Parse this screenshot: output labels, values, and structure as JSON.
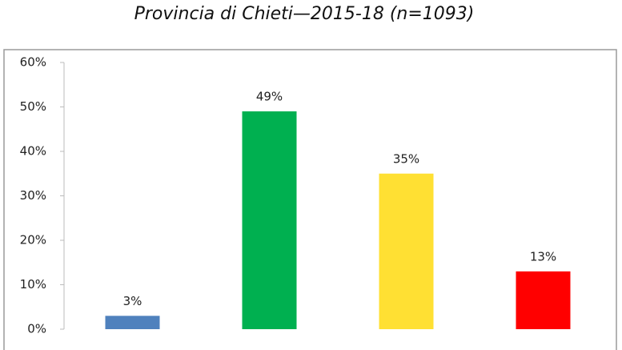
{
  "chart_data": {
    "type": "bar",
    "title": "Provincia di Chieti—2015-18 (n=1093)",
    "categories": [
      null,
      null,
      null,
      null
    ],
    "values": [
      3,
      49,
      35,
      13
    ],
    "value_labels": [
      "3%",
      "49%",
      "35%",
      "13%"
    ],
    "colors": [
      "#4f81bd",
      "#00b050",
      "#ffe033",
      "#ff0000"
    ],
    "ylim": [
      0,
      60
    ],
    "yticks": [
      {
        "value": 0,
        "label": "0%"
      },
      {
        "value": 10,
        "label": "10%"
      },
      {
        "value": 20,
        "label": "20%"
      },
      {
        "value": 30,
        "label": "30%"
      },
      {
        "value": 40,
        "label": "40%"
      },
      {
        "value": 50,
        "label": "50%"
      },
      {
        "value": 60,
        "label": "60%"
      }
    ],
    "grid": false
  }
}
